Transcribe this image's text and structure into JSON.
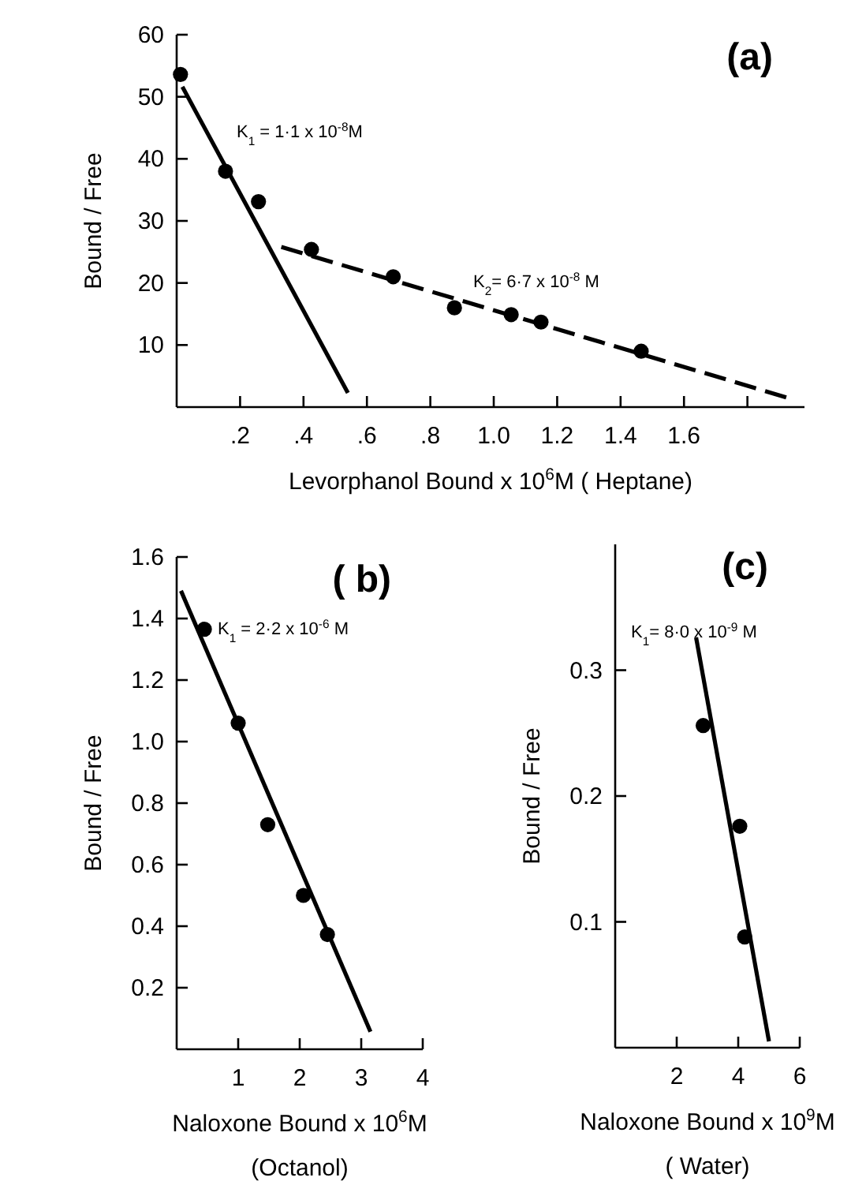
{
  "chart_data": [
    {
      "type": "scatter",
      "title": "(a)",
      "xlabel": "Levorphanol Bound x 10$^{6}$M ( Heptane)",
      "ylabel": "Bound / Free",
      "xlim": [
        0,
        1.98
      ],
      "ylim": [
        0,
        60
      ],
      "xticks": [
        {
          "value": 0.2,
          "label": ".2"
        },
        {
          "value": 0.4,
          "label": ".4"
        },
        {
          "value": 0.6,
          "label": ".6"
        },
        {
          "value": 0.8,
          "label": ".8"
        },
        {
          "value": 1.0,
          "label": "1.0"
        },
        {
          "value": 1.2,
          "label": "1.2"
        },
        {
          "value": 1.4,
          "label": "1.4"
        },
        {
          "value": 1.6,
          "label": "1.6"
        },
        {
          "value": 1.8,
          "label": null
        }
      ],
      "yticks": [
        10,
        20,
        30,
        40,
        50,
        60
      ],
      "series": [
        {
          "type": "scatter",
          "marker": "circle",
          "color": "#000000",
          "x": [
            0.012,
            0.154,
            0.258,
            0.425,
            0.683,
            0.876,
            1.055,
            1.149,
            1.465
          ],
          "values": [
            53.6,
            38,
            33.1,
            25.4,
            21,
            16,
            14.9,
            13.7,
            9
          ]
        },
        {
          "type": "line",
          "marker": "none",
          "line_style": "solid",
          "color": "#000000",
          "x": [
            0.018,
            0.54
          ],
          "values": [
            51.6,
            2.3
          ]
        },
        {
          "type": "line",
          "marker": "none",
          "line_style": "dashed",
          "color": "#000000",
          "x": [
            0.33,
            1.94
          ],
          "values": [
            25.8,
            1.3
          ]
        }
      ],
      "annotations": [
        "K$_{1}$ = 1·1 x 10$^{-8}$M",
        "K$_{2}$= 6·7 x 10$^{-8}$ M"
      ]
    },
    {
      "type": "scatter",
      "title": "( b)",
      "xlabel": "Naloxone Bound  x 10$^{6}$M\n(Octanol)",
      "ylabel": "Bound / Free",
      "xlim": [
        0,
        4
      ],
      "ylim": [
        0,
        1.6
      ],
      "xticks": [
        1,
        2,
        3,
        4
      ],
      "yticks": [
        0.2,
        0.4,
        0.6,
        0.8,
        {
          "value": 1.0,
          "label": "1.0"
        },
        1.2,
        1.4,
        1.6
      ],
      "series": [
        {
          "type": "scatter",
          "marker": "circle",
          "color": "#000000",
          "x": [
            0.45,
            1.0,
            1.48,
            2.06,
            2.45
          ],
          "values": [
            1.365,
            1.06,
            0.73,
            0.5,
            0.373
          ]
        },
        {
          "type": "line",
          "marker": "none",
          "line_style": "solid",
          "color": "#000000",
          "x": [
            0.07,
            3.15
          ],
          "values": [
            1.49,
            0.057
          ]
        }
      ],
      "annotations": [
        "K$_{1}$ = 2·2 x 10$^{-6}$ M"
      ]
    },
    {
      "type": "scatter",
      "title": "(c)",
      "xlabel": "Naloxone Bound x 10$^{9}$M\n( Water)",
      "ylabel": "Bound / Free",
      "xlim": [
        0,
        6
      ],
      "ylim": [
        0,
        0.4
      ],
      "xticks": [
        2,
        4,
        6
      ],
      "yticks": [
        0.1,
        0.2,
        0.3
      ],
      "series": [
        {
          "type": "scatter",
          "marker": "circle",
          "color": "#000000",
          "x": [
            2.86,
            4.05,
            4.21
          ],
          "values": [
            0.256,
            0.176,
            0.088
          ]
        },
        {
          "type": "line",
          "marker": "none",
          "line_style": "solid",
          "color": "#000000",
          "x": [
            2.63,
            5.0
          ],
          "values": [
            0.326,
            0.005
          ]
        }
      ],
      "annotations": [
        "K$_{1}$= 8·0 x 10$^{-9}$ M"
      ]
    }
  ]
}
